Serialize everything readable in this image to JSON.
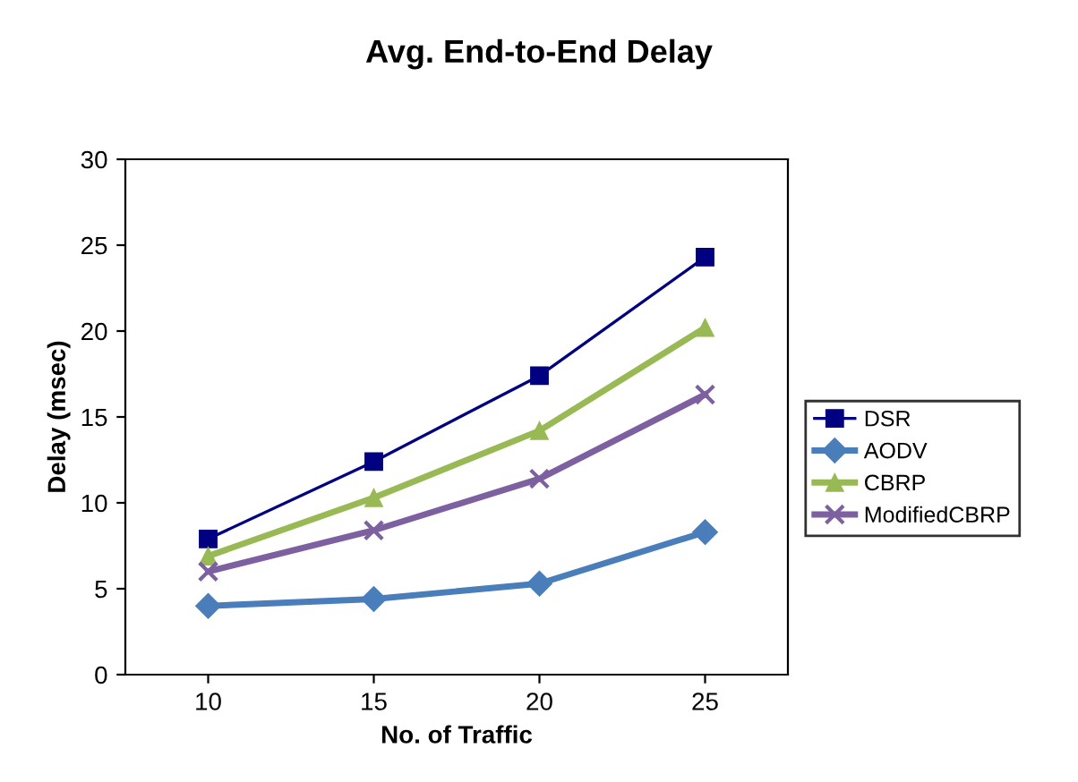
{
  "chart_data": {
    "type": "line",
    "title": "Avg. End-to-End Delay",
    "xlabel": "No. of Traffic",
    "ylabel": "Delay (msec)",
    "categories": [
      "10",
      "15",
      "20",
      "25"
    ],
    "series": [
      {
        "name": "DSR",
        "color": "#000080",
        "marker": "square",
        "values": [
          7.9,
          12.4,
          17.4,
          24.3
        ]
      },
      {
        "name": "AODV",
        "color": "#4a7ebb",
        "marker": "diamond",
        "values": [
          4.0,
          4.4,
          5.3,
          8.3
        ]
      },
      {
        "name": "CBRP",
        "color": "#98b954",
        "marker": "triangle",
        "values": [
          6.9,
          10.3,
          14.2,
          20.2
        ]
      },
      {
        "name": "ModifiedCBRP",
        "color": "#7d60a0",
        "marker": "cross",
        "values": [
          6.0,
          8.4,
          11.4,
          16.3
        ]
      }
    ],
    "ylim": [
      0,
      30
    ],
    "yticks": [
      0,
      5,
      10,
      15,
      20,
      25,
      30
    ],
    "grid": false,
    "legend": "right",
    "line_style": "solid"
  }
}
